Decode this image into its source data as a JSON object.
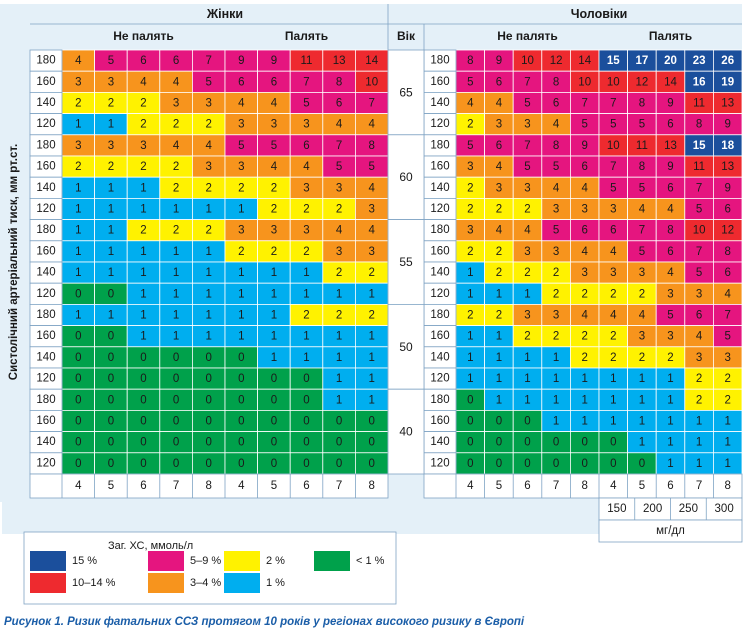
{
  "chart_data": {
    "type": "heatmap",
    "title": "",
    "y_axis_label": "Систолічний артеріальний тиск, мм рт.ст.",
    "sex_labels": [
      "Жінки",
      "Чоловіки"
    ],
    "smoking_labels": [
      "Не палять",
      "Палять"
    ],
    "age_header": "Вік",
    "ages": [
      "65",
      "60",
      "55",
      "50",
      "40"
    ],
    "sbp_values": [
      "180",
      "160",
      "140",
      "120"
    ],
    "chol_mmol": [
      "4",
      "5",
      "6",
      "7",
      "8"
    ],
    "chol_mgdl": [
      "150",
      "200",
      "250",
      "300"
    ],
    "chol_mgdl_unit": "мг/дл",
    "women": {
      "non_smokers": [
        [
          [
            4,
            5,
            6,
            6,
            7
          ],
          [
            3,
            3,
            4,
            4,
            5
          ],
          [
            2,
            2,
            2,
            3,
            3
          ],
          [
            1,
            1,
            2,
            2,
            2
          ]
        ],
        [
          [
            3,
            3,
            3,
            4,
            4
          ],
          [
            2,
            2,
            2,
            2,
            3
          ],
          [
            1,
            1,
            1,
            2,
            2
          ],
          [
            1,
            1,
            1,
            1,
            1
          ]
        ],
        [
          [
            1,
            1,
            2,
            2,
            2
          ],
          [
            1,
            1,
            1,
            1,
            1
          ],
          [
            1,
            1,
            1,
            1,
            1
          ],
          [
            0,
            0,
            1,
            1,
            1
          ]
        ],
        [
          [
            1,
            1,
            1,
            1,
            1
          ],
          [
            0,
            0,
            1,
            1,
            1
          ],
          [
            0,
            0,
            0,
            0,
            0
          ],
          [
            0,
            0,
            0,
            0,
            0
          ]
        ],
        [
          [
            0,
            0,
            0,
            0,
            0
          ],
          [
            0,
            0,
            0,
            0,
            0
          ],
          [
            0,
            0,
            0,
            0,
            0
          ],
          [
            0,
            0,
            0,
            0,
            0
          ]
        ]
      ],
      "smokers": [
        [
          [
            9,
            9,
            11,
            13,
            14
          ],
          [
            6,
            6,
            7,
            8,
            10
          ],
          [
            4,
            4,
            5,
            6,
            7
          ],
          [
            3,
            3,
            3,
            4,
            4
          ]
        ],
        [
          [
            5,
            5,
            6,
            7,
            8
          ],
          [
            3,
            4,
            4,
            5,
            5
          ],
          [
            2,
            2,
            3,
            3,
            4
          ],
          [
            1,
            2,
            2,
            2,
            3
          ]
        ],
        [
          [
            3,
            3,
            3,
            4,
            4
          ],
          [
            2,
            2,
            2,
            3,
            3
          ],
          [
            1,
            1,
            1,
            2,
            2
          ],
          [
            1,
            1,
            1,
            1,
            1
          ]
        ],
        [
          [
            1,
            1,
            2,
            2,
            2
          ],
          [
            1,
            1,
            1,
            1,
            1
          ],
          [
            0,
            1,
            1,
            1,
            1
          ],
          [
            0,
            0,
            0,
            1,
            1
          ]
        ],
        [
          [
            0,
            0,
            0,
            1,
            1
          ],
          [
            0,
            0,
            0,
            0,
            0
          ],
          [
            0,
            0,
            0,
            0,
            0
          ],
          [
            0,
            0,
            0,
            0,
            0
          ]
        ]
      ]
    },
    "men": {
      "non_smokers": [
        [
          [
            8,
            9,
            10,
            12,
            14
          ],
          [
            5,
            6,
            7,
            8,
            10
          ],
          [
            4,
            4,
            5,
            6,
            7
          ],
          [
            2,
            3,
            3,
            4,
            5
          ]
        ],
        [
          [
            5,
            6,
            7,
            8,
            9
          ],
          [
            3,
            4,
            5,
            5,
            6
          ],
          [
            2,
            3,
            3,
            4,
            4
          ],
          [
            2,
            2,
            2,
            3,
            3
          ]
        ],
        [
          [
            3,
            4,
            4,
            5,
            6
          ],
          [
            2,
            2,
            3,
            3,
            4
          ],
          [
            1,
            2,
            2,
            2,
            3
          ],
          [
            1,
            1,
            1,
            2,
            2
          ]
        ],
        [
          [
            2,
            2,
            3,
            3,
            4
          ],
          [
            1,
            1,
            2,
            2,
            2
          ],
          [
            1,
            1,
            1,
            1,
            2
          ],
          [
            1,
            1,
            1,
            1,
            1
          ]
        ],
        [
          [
            0,
            1,
            1,
            1,
            1
          ],
          [
            0,
            0,
            0,
            1,
            1
          ],
          [
            0,
            0,
            0,
            0,
            0
          ],
          [
            0,
            0,
            0,
            0,
            0
          ]
        ]
      ],
      "smokers": [
        [
          [
            15,
            17,
            20,
            23,
            26
          ],
          [
            10,
            12,
            14,
            16,
            19
          ],
          [
            7,
            8,
            9,
            11,
            13
          ],
          [
            5,
            5,
            6,
            8,
            9
          ]
        ],
        [
          [
            10,
            11,
            13,
            15,
            18
          ],
          [
            7,
            8,
            9,
            11,
            13
          ],
          [
            5,
            5,
            6,
            7,
            9
          ],
          [
            3,
            4,
            4,
            5,
            6
          ]
        ],
        [
          [
            6,
            7,
            8,
            10,
            12
          ],
          [
            4,
            5,
            6,
            7,
            8
          ],
          [
            3,
            3,
            4,
            5,
            6
          ],
          [
            2,
            2,
            3,
            3,
            4
          ]
        ],
        [
          [
            4,
            4,
            5,
            6,
            7
          ],
          [
            2,
            3,
            3,
            4,
            5
          ],
          [
            2,
            2,
            2,
            3,
            3
          ],
          [
            1,
            1,
            1,
            2,
            2
          ]
        ],
        [
          [
            1,
            1,
            1,
            2,
            2
          ],
          [
            1,
            1,
            1,
            1,
            1
          ],
          [
            0,
            1,
            1,
            1,
            1
          ],
          [
            0,
            0,
            1,
            1,
            1
          ]
        ]
      ]
    },
    "legend": {
      "title": "Заг. ХС, ммоль/л",
      "items": [
        {
          "label": "15 %",
          "color": "#1b4f9c",
          "min": 15,
          "max": 99
        },
        {
          "label": "10–14 %",
          "color": "#ee2a2f",
          "min": 10,
          "max": 14
        },
        {
          "label": "5–9 %",
          "color": "#e5157f",
          "min": 5,
          "max": 9
        },
        {
          "label": "3–4 %",
          "color": "#f7941d",
          "min": 3,
          "max": 4
        },
        {
          "label": "2 %",
          "color": "#fff200",
          "min": 2,
          "max": 2
        },
        {
          "label": "1 %",
          "color": "#00aeef",
          "min": 1,
          "max": 1
        },
        {
          "label": "< 1 %",
          "color": "#00a14b",
          "min": 0,
          "max": 0
        }
      ]
    },
    "caption": "Рисунок 1. Ризик фатальних ССЗ протягом 10 років у регіонах високого ризику в Європі"
  }
}
